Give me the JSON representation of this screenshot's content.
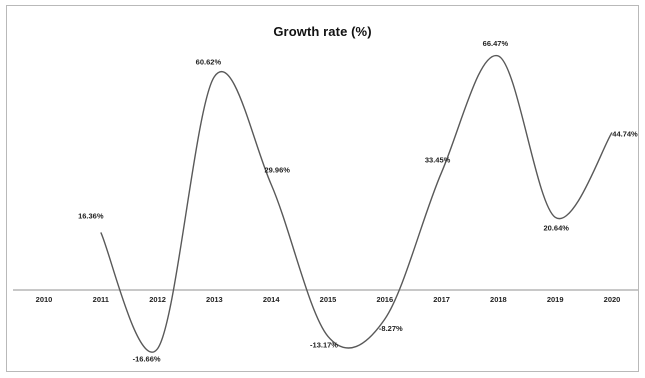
{
  "chart_data": {
    "type": "line",
    "title": "Growth rate (%)",
    "xlabel": "",
    "ylabel": "",
    "categories": [
      "2010",
      "2011",
      "2012",
      "2013",
      "2014",
      "2015",
      "2016",
      "2017",
      "2018",
      "2019",
      "2020"
    ],
    "series": [
      {
        "values": [
          null,
          16.36,
          -16.66,
          60.62,
          29.96,
          -13.17,
          -8.27,
          33.45,
          66.47,
          20.64,
          44.74
        ],
        "data_labels": [
          "",
          "16.36%",
          "-16.66%",
          "60.62%",
          "29.96%",
          "-13.17%",
          "-8.27%",
          "33.45%",
          "66.47%",
          "20.64%",
          "44.74%"
        ]
      }
    ],
    "smooth": true,
    "grid": false,
    "legend": "none",
    "line_color": "#595959",
    "axis_color": "#a6a6a6"
  }
}
